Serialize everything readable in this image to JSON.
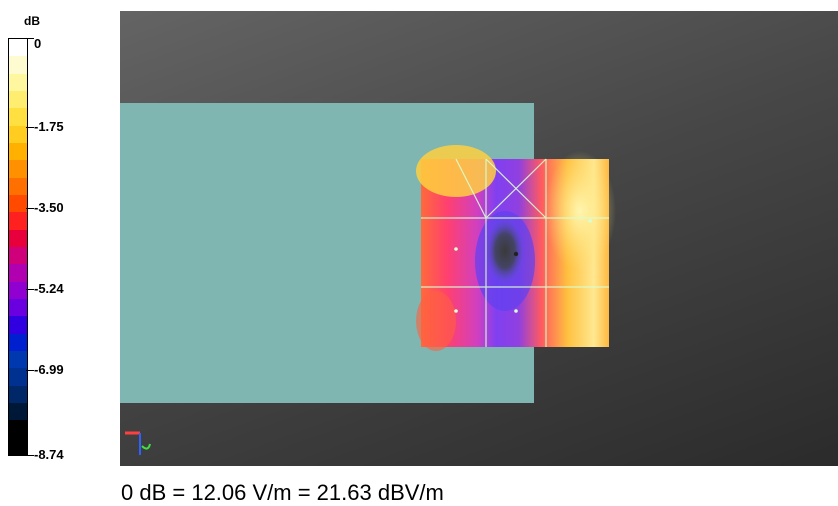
{
  "legend": {
    "unit": "dB",
    "labels": [
      "0",
      "-1.75",
      "-3.50",
      "-5.24",
      "-6.99",
      "-8.74"
    ],
    "colors": [
      "#ffffff",
      "#fffbd0",
      "#fff6a0",
      "#ffed70",
      "#ffe040",
      "#ffcc20",
      "#ffb000",
      "#ff9000",
      "#ff7000",
      "#ff4a00",
      "#ff2020",
      "#e8003c",
      "#d0007a",
      "#b000b0",
      "#9000d0",
      "#6a00e0",
      "#3000e0",
      "#0020d0",
      "#0038b0",
      "#003090",
      "#002868",
      "#001838",
      "#000000",
      "#000000"
    ]
  },
  "viewer": {
    "background_top": "#646464",
    "background_bottom": "#2b2b2b",
    "phantom_color": "#7fb6b1",
    "grid_color": "#c8ffc8",
    "axis_icon": "xyz-axis-triad-icon"
  },
  "caption": "0 dB = 12.06 V/m = 21.63 dBV/m"
}
